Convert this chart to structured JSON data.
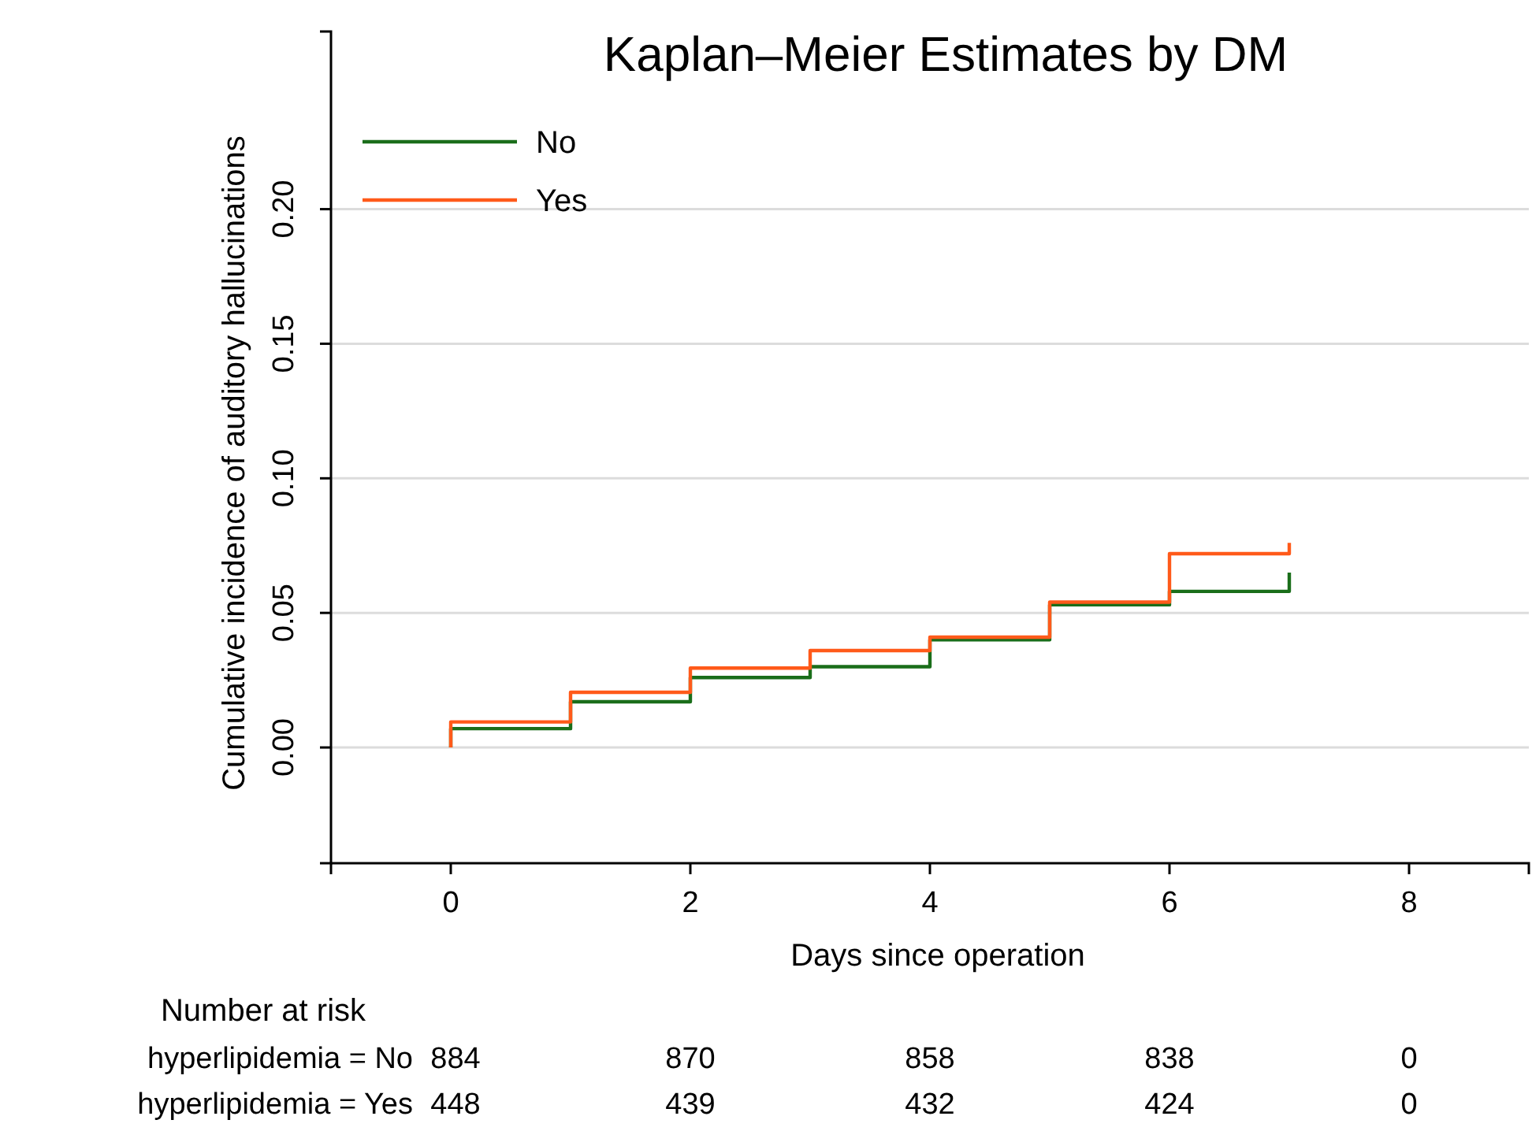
{
  "chart_data": {
    "type": "step",
    "title": "Kaplan–Meier Estimates by DM",
    "xlabel": "Days since operation",
    "ylabel": "Cumulative incidence of auditory hallucinations",
    "xlim": [
      -1,
      9
    ],
    "xticks": [
      0,
      2,
      4,
      6,
      8
    ],
    "ylim": [
      -0.043,
      0.266
    ],
    "yticks": [
      {
        "value": 0,
        "label": "0.00"
      },
      {
        "value": 0.05,
        "label": "0.05"
      },
      {
        "value": 0.1,
        "label": "0.10"
      },
      {
        "value": 0.15,
        "label": "0.15"
      },
      {
        "value": 0.2,
        "label": "0.20"
      }
    ],
    "grid": "y",
    "legend": "top left",
    "line_style": "solid",
    "series": [
      {
        "name": "No",
        "color": "#1a6e1a",
        "x": [
          0,
          0,
          1,
          2,
          3,
          4,
          5,
          6,
          7,
          7
        ],
        "values": [
          0,
          0.007,
          0.017,
          0.026,
          0.03,
          0.04,
          0.053,
          0.058,
          0.058,
          0.065
        ]
      },
      {
        "name": "Yes",
        "color": "#ff5a1a",
        "x": [
          0,
          0,
          1,
          2,
          3,
          4,
          5,
          6,
          7,
          7
        ],
        "values": [
          0,
          0.0095,
          0.0205,
          0.0295,
          0.036,
          0.041,
          0.054,
          0.072,
          0.072,
          0.076
        ]
      }
    ],
    "annotations": [
      "Number at risk",
      "hyperlipidemia = No",
      "884",
      "870",
      "858",
      "838",
      "0",
      "hyperlipidemia = Yes",
      "448",
      "439",
      "432",
      "424",
      "0"
    ]
  }
}
